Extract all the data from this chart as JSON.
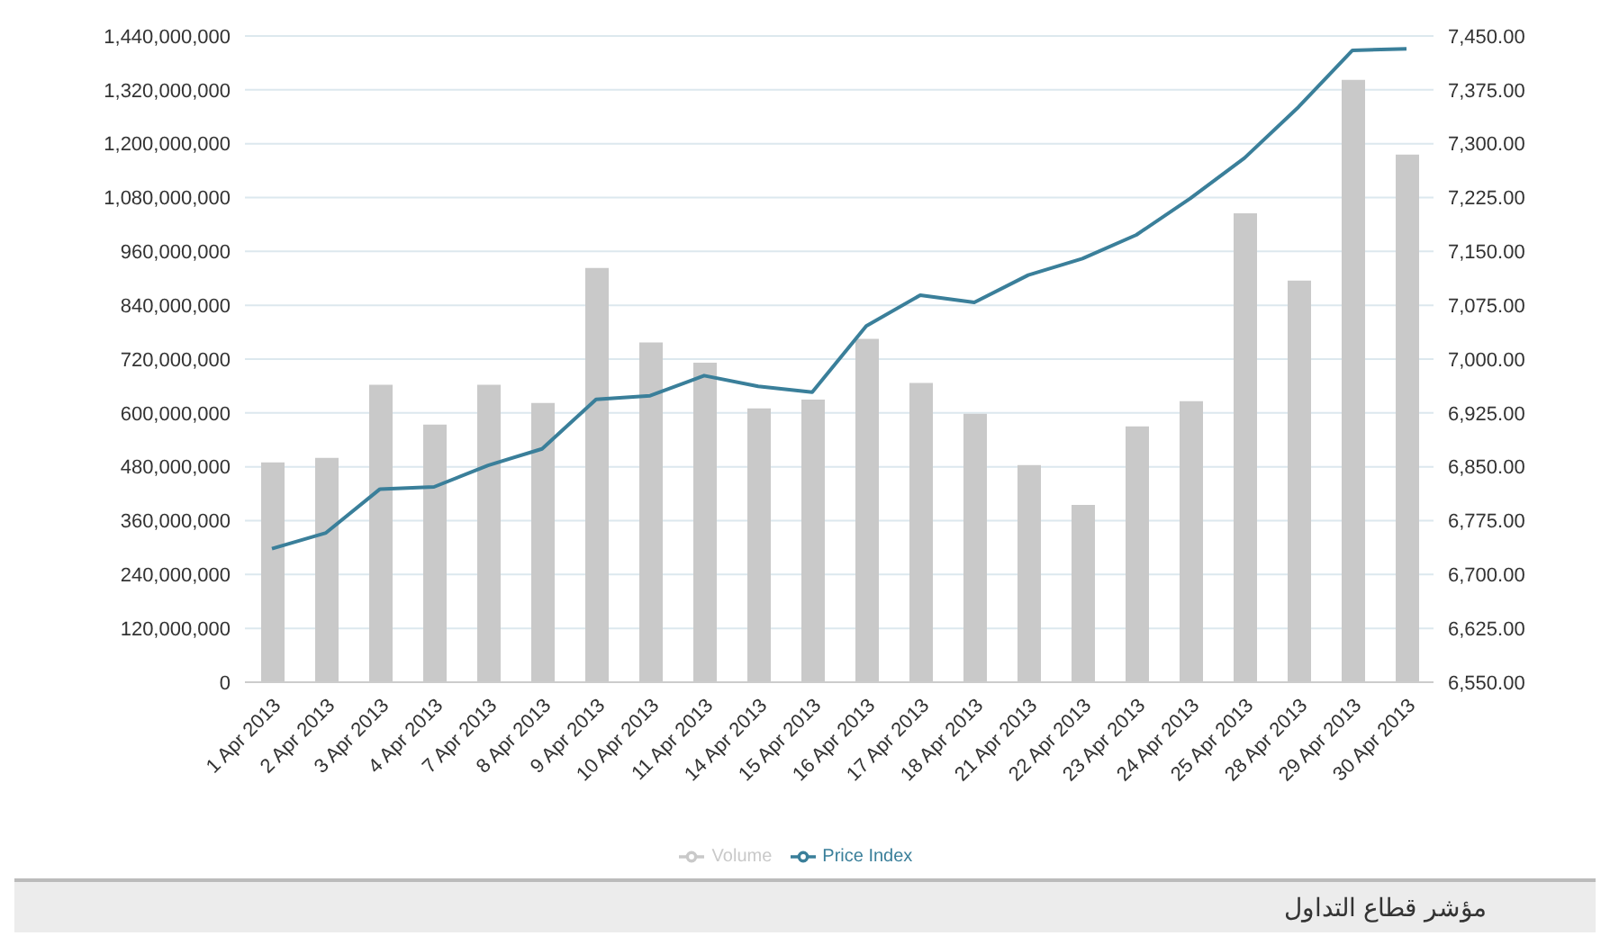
{
  "chart_data": {
    "type": "bar",
    "categories": [
      "1 Apr 2013",
      "2 Apr 2013",
      "3 Apr 2013",
      "4 Apr 2013",
      "7 Apr 2013",
      "8 Apr 2013",
      "9 Apr 2013",
      "10 Apr 2013",
      "11 Apr 2013",
      "14 Apr 2013",
      "15 Apr 2013",
      "16 Apr 2013",
      "17 Apr 2013",
      "18 Apr 2013",
      "21 Apr 2013",
      "22 Apr 2013",
      "23 Apr 2013",
      "24 Apr 2013",
      "25 Apr 2013",
      "28 Apr 2013",
      "29 Apr 2013",
      "30 Apr 2013"
    ],
    "series": [
      {
        "name": "Volume",
        "color": "#c9c9c9",
        "values": [
          490000000,
          500000000,
          663000000,
          574000000,
          663000000,
          622000000,
          923000000,
          757000000,
          712000000,
          610000000,
          630000000,
          765000000,
          667000000,
          598000000,
          484000000,
          395000000,
          570000000,
          626000000,
          1045000000,
          895000000,
          1342000000,
          1176000000
        ]
      },
      {
        "name": "Price Index",
        "type": "line",
        "axis": "y2",
        "color": "#3a7f9a",
        "values": [
          6736,
          6758,
          6819,
          6822,
          6852,
          6875,
          6944,
          6949,
          6977,
          6962,
          6954,
          7046,
          7089,
          7079,
          7117,
          7140,
          7173,
          7224,
          7280,
          7351,
          7430,
          7432
        ]
      }
    ],
    "ylim": [
      0,
      1440000000
    ],
    "yticks": [
      {
        "value": 0,
        "label": "0"
      },
      {
        "value": 120000000,
        "label": "120,000,000"
      },
      {
        "value": 240000000,
        "label": "240,000,000"
      },
      {
        "value": 360000000,
        "label": "360,000,000"
      },
      {
        "value": 480000000,
        "label": "480,000,000"
      },
      {
        "value": 600000000,
        "label": "600,000,000"
      },
      {
        "value": 720000000,
        "label": "720,000,000"
      },
      {
        "value": 840000000,
        "label": "840,000,000"
      },
      {
        "value": 960000000,
        "label": "960,000,000"
      },
      {
        "value": 1080000000,
        "label": "1,080,000,000"
      },
      {
        "value": 1200000000,
        "label": "1,200,000,000"
      },
      {
        "value": 1320000000,
        "label": "1,320,000,000"
      },
      {
        "value": 1440000000,
        "label": "1,440,000,000"
      }
    ],
    "y2lim": [
      6550,
      7450
    ],
    "y2ticks": [
      {
        "value": 6550,
        "label": "6,550.00"
      },
      {
        "value": 6625,
        "label": "6,625.00"
      },
      {
        "value": 6700,
        "label": "6,700.00"
      },
      {
        "value": 6775,
        "label": "6,775.00"
      },
      {
        "value": 6850,
        "label": "6,850.00"
      },
      {
        "value": 6925,
        "label": "6,925.00"
      },
      {
        "value": 7000,
        "label": "7,000.00"
      },
      {
        "value": 7075,
        "label": "7,075.00"
      },
      {
        "value": 7150,
        "label": "7,150.00"
      },
      {
        "value": 7225,
        "label": "7,225.00"
      },
      {
        "value": 7300,
        "label": "7,300.00"
      },
      {
        "value": 7375,
        "label": "7,375.00"
      },
      {
        "value": 7450,
        "label": "7,450.00"
      }
    ],
    "grid": "y",
    "legend": "bottom",
    "marker": "none",
    "annotations": [
      "مؤشر قطاع التداول"
    ]
  }
}
